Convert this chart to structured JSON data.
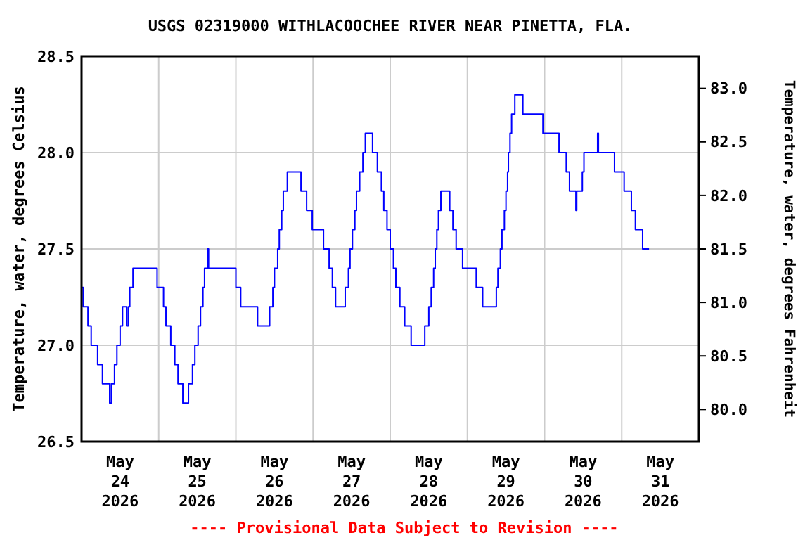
{
  "chart_data": {
    "type": "step",
    "title": "USGS 02319000 WITHLACOOCHEE RIVER NEAR PINETTA, FLA.",
    "ylabel": "Temperature, water, degrees Celsius",
    "y2label": "Temperature, water, degrees Fahrenheit",
    "annotations": [
      "---- Provisional Data Subject to Revision ----"
    ],
    "x": [
      "2026-05-24T00:00",
      "2026-05-24T00:30",
      "2026-05-24T02:00",
      "2026-05-24T03:00",
      "2026-05-24T05:00",
      "2026-05-24T06:30",
      "2026-05-24T08:45",
      "2026-05-24T09:15",
      "2026-05-24T10:15",
      "2026-05-24T11:00",
      "2026-05-24T12:00",
      "2026-05-24T12:45",
      "2026-05-24T14:00",
      "2026-05-24T14:30",
      "2026-05-24T15:00",
      "2026-05-24T16:00",
      "2026-05-24T23:30",
      "2026-05-25T01:30",
      "2026-05-25T02:15",
      "2026-05-25T03:45",
      "2026-05-25T05:00",
      "2026-05-25T06:00",
      "2026-05-25T07:30",
      "2026-05-25T09:15",
      "2026-05-25T10:30",
      "2026-05-25T11:15",
      "2026-05-25T12:15",
      "2026-05-25T13:00",
      "2026-05-25T13:45",
      "2026-05-25T14:15",
      "2026-05-25T15:15",
      "2026-05-25T15:30",
      "2026-05-26T00:00",
      "2026-05-26T01:30",
      "2026-05-26T06:45",
      "2026-05-26T10:30",
      "2026-05-26T11:30",
      "2026-05-26T12:00",
      "2026-05-26T13:00",
      "2026-05-26T13:30",
      "2026-05-26T14:15",
      "2026-05-26T14:45",
      "2026-05-26T16:00",
      "2026-05-26T20:15",
      "2026-05-26T22:00",
      "2026-05-26T23:45",
      "2026-05-27T03:15",
      "2026-05-27T05:00",
      "2026-05-27T06:00",
      "2026-05-27T07:00",
      "2026-05-27T10:00",
      "2026-05-27T11:00",
      "2026-05-27T11:30",
      "2026-05-27T12:15",
      "2026-05-27T13:00",
      "2026-05-27T13:30",
      "2026-05-27T14:30",
      "2026-05-27T15:30",
      "2026-05-27T16:15",
      "2026-05-27T18:30",
      "2026-05-27T20:00",
      "2026-05-27T21:15",
      "2026-05-27T22:00",
      "2026-05-27T23:00",
      "2026-05-28T00:00",
      "2026-05-28T01:00",
      "2026-05-28T01:45",
      "2026-05-28T03:00",
      "2026-05-28T04:30",
      "2026-05-28T06:30",
      "2026-05-28T10:45",
      "2026-05-28T12:00",
      "2026-05-28T12:45",
      "2026-05-28T13:30",
      "2026-05-28T14:00",
      "2026-05-28T14:30",
      "2026-05-28T15:00",
      "2026-05-28T15:45",
      "2026-05-28T18:30",
      "2026-05-28T19:30",
      "2026-05-28T20:30",
      "2026-05-28T22:30",
      "2026-05-29T00:45",
      "2026-05-29T02:45",
      "2026-05-29T04:45",
      "2026-05-29T09:00",
      "2026-05-29T09:30",
      "2026-05-29T10:15",
      "2026-05-29T10:45",
      "2026-05-29T11:30",
      "2026-05-29T12:00",
      "2026-05-29T12:30",
      "2026-05-29T12:45",
      "2026-05-29T13:15",
      "2026-05-29T13:45",
      "2026-05-29T14:45",
      "2026-05-29T17:15",
      "2026-05-29T23:30",
      "2026-05-30T04:30",
      "2026-05-30T06:45",
      "2026-05-30T07:45",
      "2026-05-30T09:45",
      "2026-05-30T10:00",
      "2026-05-30T11:45",
      "2026-05-30T12:15",
      "2026-05-30T16:30",
      "2026-05-30T16:45",
      "2026-05-30T21:45",
      "2026-05-31T00:45",
      "2026-05-31T03:00",
      "2026-05-31T04:15",
      "2026-05-31T06:30",
      "2026-05-31T08:30"
    ],
    "series": [
      {
        "color": "#0000ff",
        "values": [
          27.3,
          27.2,
          27.1,
          27.0,
          26.9,
          26.8,
          26.7,
          26.8,
          26.9,
          27.0,
          27.1,
          27.2,
          27.1,
          27.2,
          27.3,
          27.4,
          27.3,
          27.2,
          27.1,
          27.0,
          26.9,
          26.8,
          26.7,
          26.8,
          26.9,
          27.0,
          27.1,
          27.2,
          27.3,
          27.4,
          27.5,
          27.4,
          27.3,
          27.2,
          27.1,
          27.2,
          27.3,
          27.4,
          27.5,
          27.6,
          27.7,
          27.8,
          27.9,
          27.8,
          27.7,
          27.6,
          27.5,
          27.4,
          27.3,
          27.2,
          27.3,
          27.4,
          27.5,
          27.6,
          27.7,
          27.8,
          27.9,
          28.0,
          28.1,
          28.0,
          27.9,
          27.8,
          27.7,
          27.6,
          27.5,
          27.4,
          27.3,
          27.2,
          27.1,
          27.0,
          27.1,
          27.2,
          27.3,
          27.4,
          27.5,
          27.6,
          27.7,
          27.8,
          27.7,
          27.6,
          27.5,
          27.4,
          27.4,
          27.3,
          27.2,
          27.3,
          27.4,
          27.5,
          27.6,
          27.7,
          27.8,
          27.9,
          28.0,
          28.1,
          28.2,
          28.3,
          28.2,
          28.1,
          28.0,
          27.9,
          27.8,
          27.7,
          27.8,
          27.9,
          28.0,
          28.1,
          28.0,
          27.9,
          27.8,
          27.7,
          27.6,
          27.5,
          27.5
        ]
      }
    ],
    "xlim": [
      "2026-05-24T00:00",
      "2026-06-01T00:00"
    ],
    "xticks": [
      {
        "value": "2026-05-24T12:00",
        "label": "May\n24\n2026"
      },
      {
        "value": "2026-05-25T00:00",
        "label": null
      },
      {
        "value": "2026-05-25T12:00",
        "label": "May\n25\n2026"
      },
      {
        "value": "2026-05-26T00:00",
        "label": null
      },
      {
        "value": "2026-05-26T12:00",
        "label": "May\n26\n2026"
      },
      {
        "value": "2026-05-27T00:00",
        "label": null
      },
      {
        "value": "2026-05-27T12:00",
        "label": "May\n27\n2026"
      },
      {
        "value": "2026-05-28T00:00",
        "label": null
      },
      {
        "value": "2026-05-28T12:00",
        "label": "May\n28\n2026"
      },
      {
        "value": "2026-05-29T00:00",
        "label": null
      },
      {
        "value": "2026-05-29T12:00",
        "label": "May\n29\n2026"
      },
      {
        "value": "2026-05-30T00:00",
        "label": null
      },
      {
        "value": "2026-05-30T12:00",
        "label": "May\n30\n2026"
      },
      {
        "value": "2026-05-31T00:00",
        "label": null
      },
      {
        "value": "2026-05-31T12:00",
        "label": "May\n31\n2026"
      }
    ],
    "ylim": [
      26.5,
      28.5
    ],
    "yticks": [
      {
        "value": 26.5,
        "label": "26.5"
      },
      {
        "value": 27,
        "label": "27.0"
      },
      {
        "value": 27.5,
        "label": "27.5"
      },
      {
        "value": 28,
        "label": "28.0"
      },
      {
        "value": 28.5,
        "label": "28.5"
      }
    ],
    "y2lim": [
      79.7,
      83.3
    ],
    "y2ticks": [
      {
        "value": 80,
        "label": "80.0"
      },
      {
        "value": 80.5,
        "label": "80.5"
      },
      {
        "value": 81,
        "label": "81.0"
      },
      {
        "value": 81.5,
        "label": "81.5"
      },
      {
        "value": 82,
        "label": "82.0"
      },
      {
        "value": 82.5,
        "label": "82.5"
      },
      {
        "value": 83,
        "label": "83.0"
      }
    ],
    "grid": true
  }
}
